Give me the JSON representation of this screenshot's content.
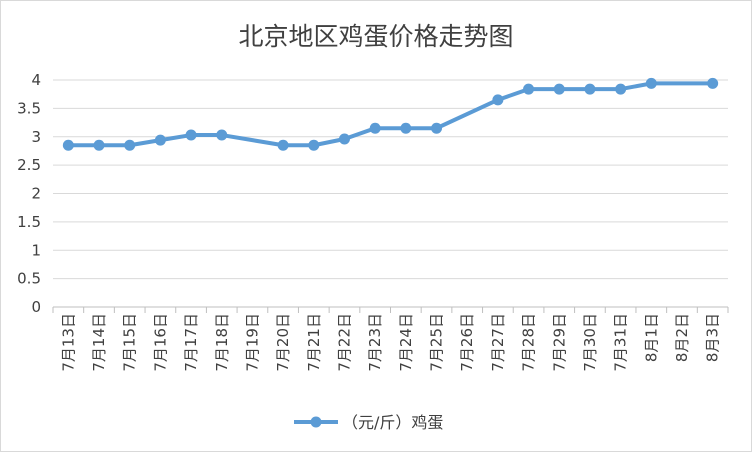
{
  "chart_data": {
    "type": "line",
    "title": "北京地区鸡蛋价格走势图",
    "categories": [
      "7月13日",
      "7月14日",
      "7月15日",
      "7月16日",
      "7月17日",
      "7月18日",
      "7月19日",
      "7月20日",
      "7月21日",
      "7月22日",
      "7月23日",
      "7月24日",
      "7月25日",
      "7月26日",
      "7月27日",
      "7月28日",
      "7月29日",
      "7月30日",
      "7月31日",
      "8月1日",
      "8月2日",
      "8月3日"
    ],
    "series": [
      {
        "name": "（元/斤）鸡蛋",
        "color": "#5b9bd5",
        "values": [
          2.85,
          2.85,
          2.85,
          2.94,
          3.03,
          3.03,
          null,
          2.85,
          2.85,
          2.96,
          3.15,
          3.15,
          3.15,
          null,
          3.65,
          3.84,
          3.84,
          3.84,
          3.84,
          3.94,
          null,
          3.94
        ]
      }
    ],
    "y_ticks": [
      "0",
      "0.5",
      "1",
      "1.5",
      "2",
      "2.5",
      "3",
      "3.5",
      "4"
    ],
    "ylim": [
      0,
      4
    ],
    "grid": true,
    "legend": "bottom",
    "gaps_connected": true
  }
}
